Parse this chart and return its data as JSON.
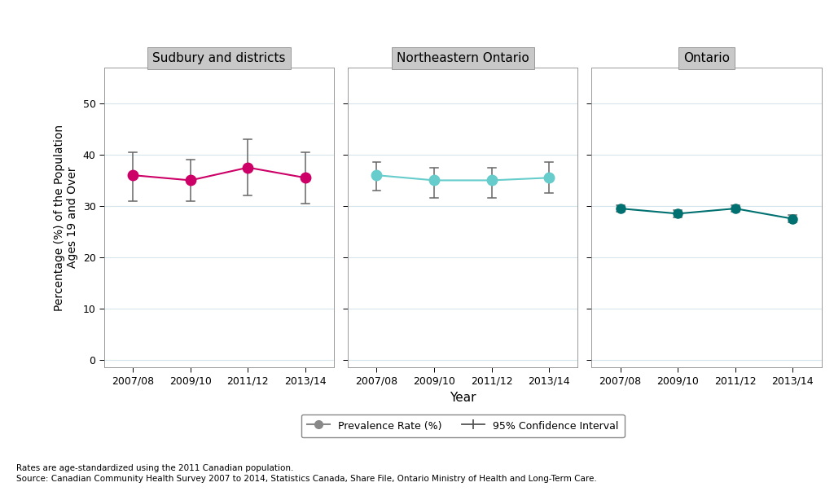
{
  "years": [
    "2007/08",
    "2009/10",
    "2011/12",
    "2013/14"
  ],
  "panels": [
    {
      "title": "Sudbury and districts",
      "color": "#CC0066",
      "values": [
        36.0,
        35.0,
        37.5,
        35.5
      ],
      "ci_low": [
        31.0,
        31.0,
        32.0,
        30.5
      ],
      "ci_high": [
        40.5,
        39.0,
        43.0,
        40.5
      ]
    },
    {
      "title": "Northeastern Ontario",
      "color": "#66CCCC",
      "values": [
        36.0,
        35.0,
        35.0,
        35.5
      ],
      "ci_low": [
        33.0,
        31.5,
        31.5,
        32.5
      ],
      "ci_high": [
        38.5,
        37.5,
        37.5,
        38.5
      ]
    },
    {
      "title": "Ontario",
      "color": "#007070",
      "values": [
        29.5,
        28.5,
        29.5,
        27.5
      ],
      "ci_low": [
        28.8,
        27.8,
        28.8,
        26.8
      ],
      "ci_high": [
        30.2,
        29.2,
        30.2,
        28.2
      ]
    }
  ],
  "ylabel": "Percentage (%) of the Population\nAges 19 and Over",
  "xlabel": "Year",
  "ylim": [
    -1.5,
    57
  ],
  "yticks": [
    0,
    10,
    20,
    30,
    40,
    50
  ],
  "footnote1": "Rates are age-standardized using the 2011 Canadian population.",
  "footnote2": "Source: Canadian Community Health Survey 2007 to 2014, Statistics Canada, Share File, Ontario Ministry of Health and Long-Term Care.",
  "plot_bg": "#FFFFFF",
  "grid_color": "#D8E4EC",
  "panel_header_color": "#C8C8C8",
  "tick_fontsize": 9,
  "axis_fontsize": 10,
  "title_fontsize": 11,
  "footnote_fontsize": 7.5
}
